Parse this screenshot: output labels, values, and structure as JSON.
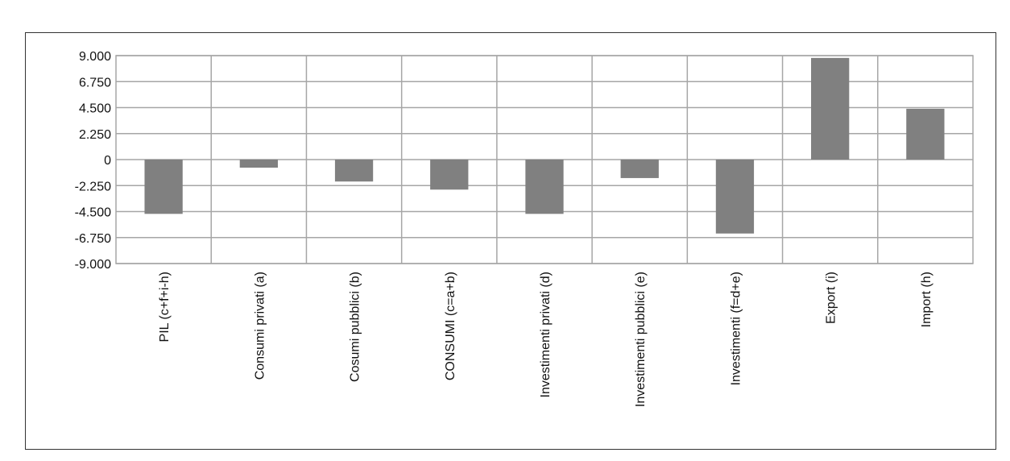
{
  "chart_data": {
    "type": "bar",
    "categories": [
      "PIL (c+f+i-h)",
      "Consumi privati (a)",
      "Cosumi pubblici (b)",
      "CONSUMI (c=a+b)",
      "Investimenti privati (d)",
      "Investimenti pubblici (e)",
      "Investimenti (f=d+e)",
      "Export (i)",
      "Import (h)"
    ],
    "values": [
      -4700,
      -700,
      -1900,
      -2600,
      -4700,
      -1600,
      -6400,
      8800,
      4400
    ],
    "ylim": [
      -9000,
      9000
    ],
    "yticks": [
      9000,
      6750,
      4500,
      2250,
      0,
      -2250,
      -4500,
      -6750,
      -9000
    ],
    "ytick_labels": [
      "9.000",
      "6.750",
      "4.500",
      "2.250",
      "0",
      "-2.250",
      "-4.500",
      "-6.750",
      "-9.000"
    ],
    "grid": true,
    "colors": {
      "bar": "#808080",
      "grid": "#a6a6a6",
      "border": "#333333"
    }
  }
}
